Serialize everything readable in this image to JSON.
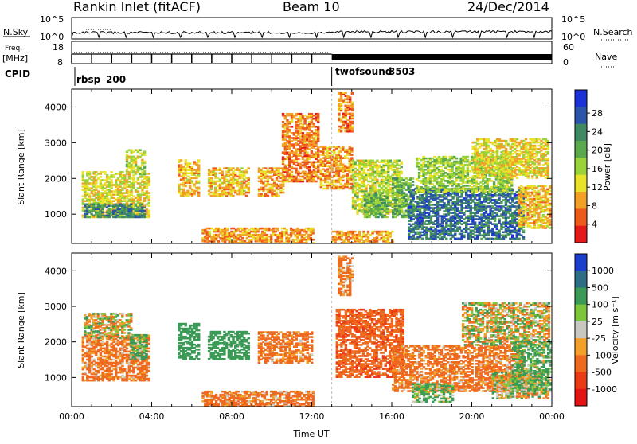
{
  "header": {
    "station": "Rankin Inlet (fitACF)",
    "beam": "Beam 10",
    "date": "24/Dec/2014"
  },
  "strip_panels": {
    "nsky_label": "N.Sky",
    "nsky_ticks": [
      "10^5",
      "10^0"
    ],
    "nsearch_label": "N.Search",
    "nsearch_ticks": [
      "10^5",
      "10^0"
    ],
    "freq_label": "Freq.",
    "freq_unit": "[MHz]",
    "freq_ticks": [
      "18",
      "8"
    ],
    "nave_label": "Nave",
    "nave_ticks": [
      "60",
      "0"
    ],
    "cpid_label": "CPID",
    "cpid_segments": [
      {
        "name": "rbsp",
        "id": "200",
        "start_hour": 0
      },
      {
        "name": "twofsound",
        "id": "3503",
        "start_hour": 13
      }
    ]
  },
  "chart_data": [
    {
      "type": "heatmap",
      "title": "Power",
      "ylabel": "Slant Range [km]",
      "xlabel": "",
      "x_unit": "hours UT",
      "xlim": [
        0,
        24
      ],
      "ylim": [
        180,
        4500
      ],
      "y_ticks": [
        "1000",
        "2000",
        "3000",
        "4000"
      ],
      "colorbar_label": "Power [dB]",
      "colorbar_ticks": [
        "4",
        "8",
        "12",
        "16",
        "20",
        "24",
        "28"
      ],
      "colorbar_colors": [
        "#1b32d8",
        "#2a55a8",
        "#3f8a62",
        "#5aa94c",
        "#9ad23a",
        "#e8e22a",
        "#f1a126",
        "#ee5a1c",
        "#e41a1a"
      ],
      "blobs": [
        {
          "t0": 0.5,
          "t1": 3.8,
          "r0": 900,
          "r1": 2200,
          "v": 14
        },
        {
          "t0": 0.6,
          "t1": 3.6,
          "r0": 900,
          "r1": 1300,
          "v": 26
        },
        {
          "t0": 2.7,
          "t1": 3.6,
          "r0": 2100,
          "r1": 2800,
          "v": 16
        },
        {
          "t0": 5.3,
          "t1": 6.3,
          "r0": 1500,
          "r1": 2500,
          "v": 12
        },
        {
          "t0": 6.8,
          "t1": 8.8,
          "r0": 1500,
          "r1": 2300,
          "v": 12
        },
        {
          "t0": 9.3,
          "t1": 10.6,
          "r0": 1500,
          "r1": 2300,
          "v": 10
        },
        {
          "t0": 10.5,
          "t1": 12.3,
          "r0": 1900,
          "r1": 3800,
          "v": 8
        },
        {
          "t0": 12.4,
          "t1": 14.0,
          "r0": 1700,
          "r1": 2900,
          "v": 10
        },
        {
          "t0": 13.3,
          "t1": 14.0,
          "r0": 3300,
          "r1": 4400,
          "v": 8
        },
        {
          "t0": 14.0,
          "t1": 16.5,
          "r0": 1000,
          "r1": 2500,
          "v": 16
        },
        {
          "t0": 14.6,
          "t1": 15.8,
          "r0": 900,
          "r1": 1600,
          "v": 22
        },
        {
          "t0": 16.0,
          "t1": 17.0,
          "r0": 900,
          "r1": 2000,
          "v": 22
        },
        {
          "t0": 16.8,
          "t1": 22.6,
          "r0": 300,
          "r1": 1700,
          "v": 28
        },
        {
          "t0": 17.2,
          "t1": 22.0,
          "r0": 1600,
          "r1": 2600,
          "v": 18
        },
        {
          "t0": 20.0,
          "t1": 23.8,
          "r0": 2000,
          "r1": 3100,
          "v": 14
        },
        {
          "t0": 22.3,
          "t1": 23.9,
          "r0": 600,
          "r1": 1800,
          "v": 12
        },
        {
          "t0": 6.5,
          "t1": 12.0,
          "r0": 180,
          "r1": 600,
          "v": 10
        },
        {
          "t0": 13.0,
          "t1": 16.0,
          "r0": 180,
          "r1": 500,
          "v": 10
        }
      ]
    },
    {
      "type": "heatmap",
      "title": "Velocity",
      "ylabel": "Slant Range [km]",
      "xlabel": "Time UT",
      "x_unit": "hours UT",
      "xlim": [
        0,
        24
      ],
      "x_ticks": [
        "00:00",
        "04:00",
        "08:00",
        "12:00",
        "16:00",
        "20:00",
        "00:00"
      ],
      "ylim": [
        180,
        4500
      ],
      "y_ticks": [
        "1000",
        "2000",
        "3000",
        "4000"
      ],
      "colorbar_label": "Velocity [m s⁻¹]",
      "colorbar_ticks": [
        "1000",
        "500",
        "100",
        "25",
        "-25",
        "-100",
        "-500",
        "-1000"
      ],
      "colorbar_colors": [
        "#1c3ecc",
        "#2d6d86",
        "#3a9a56",
        "#7cc63c",
        "#c8c8c0",
        "#f2a02a",
        "#ee6a1e",
        "#ea3a16",
        "#e21414"
      ],
      "blobs": [
        {
          "t0": 0.5,
          "t1": 3.8,
          "r0": 900,
          "r1": 2200,
          "v": -200
        },
        {
          "t0": 0.6,
          "t1": 3.0,
          "r0": 2100,
          "r1": 2800,
          "v": 0
        },
        {
          "t0": 2.9,
          "t1": 3.7,
          "r0": 1500,
          "r1": 2200,
          "v": 150
        },
        {
          "t0": 5.3,
          "t1": 6.3,
          "r0": 1500,
          "r1": 2500,
          "v": 300
        },
        {
          "t0": 6.8,
          "t1": 8.8,
          "r0": 1500,
          "r1": 2300,
          "v": 300
        },
        {
          "t0": 9.3,
          "t1": 12.0,
          "r0": 1400,
          "r1": 2300,
          "v": -200
        },
        {
          "t0": 13.2,
          "t1": 16.5,
          "r0": 1000,
          "r1": 2900,
          "v": -400
        },
        {
          "t0": 13.3,
          "t1": 14.0,
          "r0": 3300,
          "r1": 4400,
          "v": -200
        },
        {
          "t0": 16.0,
          "t1": 22.5,
          "r0": 600,
          "r1": 1900,
          "v": -200
        },
        {
          "t0": 17.0,
          "t1": 19.0,
          "r0": 300,
          "r1": 800,
          "v": 150
        },
        {
          "t0": 19.5,
          "t1": 23.8,
          "r0": 1900,
          "r1": 3100,
          "v": 0
        },
        {
          "t0": 21.0,
          "t1": 23.8,
          "r0": 400,
          "r1": 1200,
          "v": 0
        },
        {
          "t0": 6.5,
          "t1": 12.0,
          "r0": 180,
          "r1": 600,
          "v": -200
        },
        {
          "t0": 22.0,
          "t1": 23.9,
          "r0": 600,
          "r1": 2000,
          "v": 150
        }
      ]
    }
  ]
}
